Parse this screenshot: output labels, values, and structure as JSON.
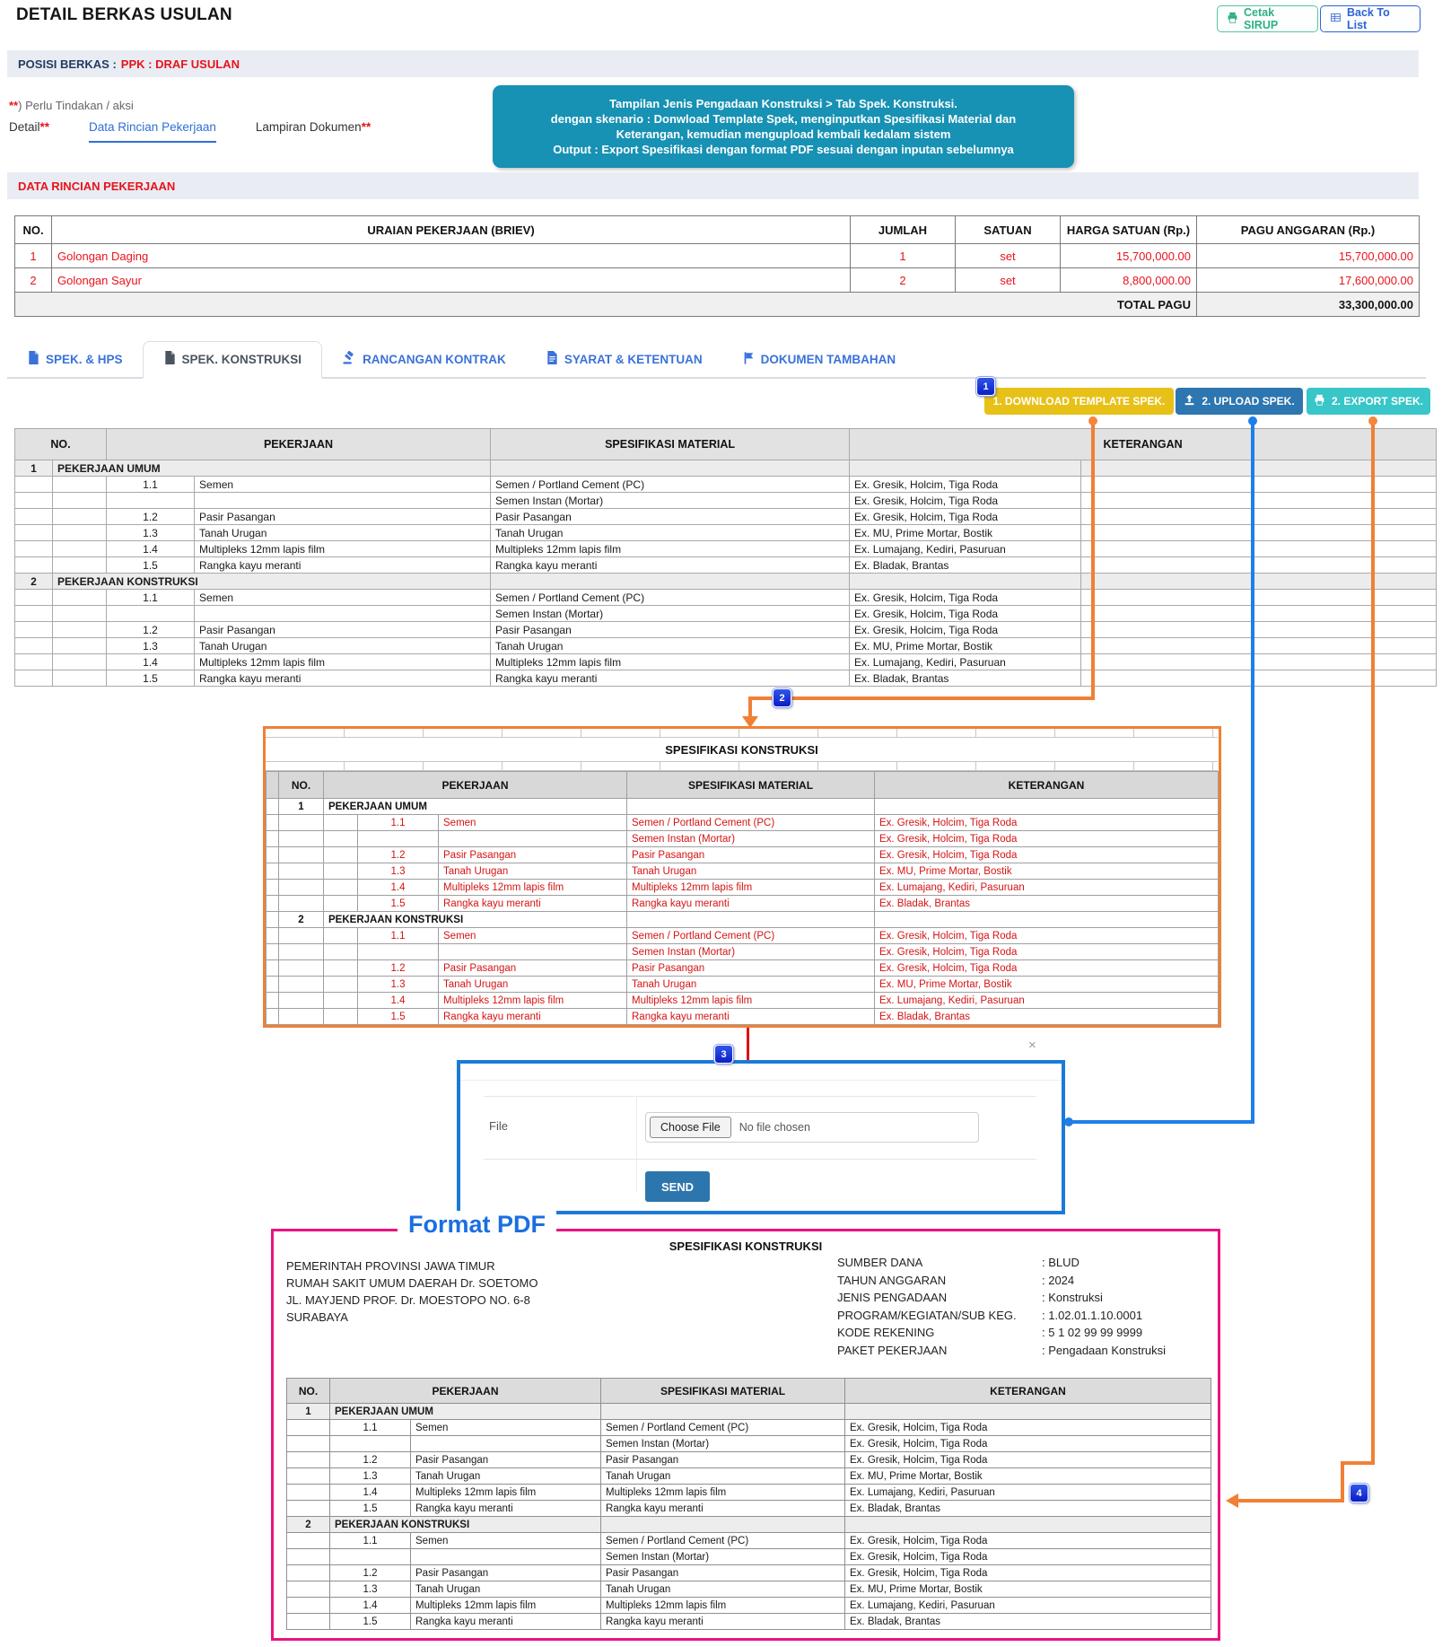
{
  "header": {
    "title": "DETAIL BERKAS USULAN",
    "print_button": "Cetak SIRUP",
    "back_button": "Back To List"
  },
  "posisi": {
    "label": "POSISI BERKAS :",
    "value": "PPK : DRAF USULAN"
  },
  "action_note": {
    "marker": "**",
    "text": ") Perlu Tindakan / aksi"
  },
  "sub_tabs": [
    {
      "label": "Detail",
      "marker": "**",
      "active": false
    },
    {
      "label": "Data Rincian Pekerjaan",
      "marker": "",
      "active": true
    },
    {
      "label": "Lampiran Dokumen",
      "marker": "**",
      "active": false
    }
  ],
  "callout": {
    "lines": [
      "Tampilan Jenis Pengadaan Konstruksi > Tab Spek. Konstruksi.",
      "dengan skenario : Donwload Template Spek, menginputkan Spesifikasi Material dan",
      "Keterangan, kemudian mengupload kembali kedalam sistem",
      "Output : Export Spesifikasi dengan format PDF sesuai dengan inputan sebelumnya"
    ]
  },
  "rincian": {
    "section_title": "DATA RINCIAN PEKERJAAN",
    "headers": [
      "NO.",
      "URAIAN PEKERJAAN (BRIEV)",
      "JUMLAH",
      "SATUAN",
      "HARGA SATUAN (Rp.)",
      "PAGU ANGGARAN (Rp.)"
    ],
    "rows": [
      {
        "no": "1",
        "uraian": "Golongan Daging",
        "jumlah": "1",
        "satuan": "set",
        "harga": "15,700,000.00",
        "pagu": "15,700,000.00"
      },
      {
        "no": "2",
        "uraian": "Golongan Sayur",
        "jumlah": "2",
        "satuan": "set",
        "harga": "8,800,000.00",
        "pagu": "17,600,000.00"
      }
    ],
    "total_label": "TOTAL PAGU",
    "total_value": "33,300,000.00"
  },
  "spec_tabs": [
    {
      "label": "SPEK. & HPS",
      "icon": "document-icon",
      "active": false
    },
    {
      "label": "SPEK. KONSTRUKSI",
      "icon": "document-icon",
      "active": true
    },
    {
      "label": "RANCANGAN KONTRAK",
      "icon": "gavel-icon",
      "active": false
    },
    {
      "label": "SYARAT & KETENTUAN",
      "icon": "document-lines-icon",
      "active": false
    },
    {
      "label": "DOKUMEN TAMBAHAN",
      "icon": "flag-icon",
      "active": false
    }
  ],
  "actions": {
    "download": "1. DOWNLOAD TEMPLATE SPEK.",
    "upload": "2. UPLOAD SPEK.",
    "export": "2. EXPORT SPEK."
  },
  "steps": {
    "one": "1",
    "two": "2",
    "three": "3",
    "four": "4"
  },
  "spec_table": {
    "headers": {
      "no": "NO.",
      "pekerjaan": "PEKERJAAN",
      "material": "SPESIFIKASI MATERIAL",
      "keterangan": "KETERANGAN"
    },
    "sections": [
      {
        "no": "1",
        "title": "PEKERJAAN UMUM",
        "items": [
          {
            "no": "1.1",
            "name": "Semen",
            "material": "Semen / Portland Cement (PC)",
            "ket": "Ex. Gresik, Holcim, Tiga Roda"
          },
          {
            "no": "",
            "name": "",
            "material": "Semen Instan (Mortar)",
            "ket": "Ex. Gresik, Holcim, Tiga Roda"
          },
          {
            "no": "1.2",
            "name": "Pasir Pasangan",
            "material": "Pasir Pasangan",
            "ket": "Ex. Gresik, Holcim, Tiga Roda"
          },
          {
            "no": "1.3",
            "name": "Tanah Urugan",
            "material": "Tanah Urugan",
            "ket": "Ex. MU, Prime Mortar, Bostik"
          },
          {
            "no": "1.4",
            "name": "Multipleks 12mm lapis film",
            "material": "Multipleks 12mm lapis film",
            "ket": "Ex. Lumajang, Kediri, Pasuruan"
          },
          {
            "no": "1.5",
            "name": "Rangka kayu meranti",
            "material": "Rangka kayu meranti",
            "ket": "Ex. Bladak, Brantas"
          }
        ]
      },
      {
        "no": "2",
        "title": "PEKERJAAN KONSTRUKSI",
        "items": [
          {
            "no": "1.1",
            "name": "Semen",
            "material": "Semen / Portland Cement (PC)",
            "ket": "Ex. Gresik, Holcim, Tiga Roda"
          },
          {
            "no": "",
            "name": "",
            "material": "Semen Instan (Mortar)",
            "ket": "Ex. Gresik, Holcim, Tiga Roda"
          },
          {
            "no": "1.2",
            "name": "Pasir Pasangan",
            "material": "Pasir Pasangan",
            "ket": "Ex. Gresik, Holcim, Tiga Roda"
          },
          {
            "no": "1.3",
            "name": "Tanah Urugan",
            "material": "Tanah Urugan",
            "ket": "Ex. MU, Prime Mortar, Bostik"
          },
          {
            "no": "1.4",
            "name": "Multipleks 12mm lapis film",
            "material": "Multipleks 12mm lapis film",
            "ket": "Ex. Lumajang, Kediri, Pasuruan"
          },
          {
            "no": "1.5",
            "name": "Rangka kayu meranti",
            "material": "Rangka kayu meranti",
            "ket": "Ex. Bladak, Brantas"
          }
        ]
      }
    ]
  },
  "excel": {
    "title": "SPESIFIKASI KONSTRUKSI"
  },
  "upload_modal": {
    "close": "×",
    "file_label": "File",
    "choose_button": "Choose File",
    "file_status": "No file chosen",
    "send_button": "SEND"
  },
  "pdf": {
    "label": "Format PDF",
    "title": "SPESIFIKASI KONSTRUKSI",
    "address_lines": [
      "PEMERINTAH PROVINSI JAWA TIMUR",
      "RUMAH SAKIT UMUM DAERAH Dr. SOETOMO",
      "JL. MAYJEND PROF. Dr. MOESTOPO NO. 6-8",
      "SURABAYA"
    ],
    "info": [
      {
        "label": "SUMBER DANA",
        "value": ": BLUD"
      },
      {
        "label": "TAHUN ANGGARAN",
        "value": ": 2024"
      },
      {
        "label": "JENIS PENGADAAN",
        "value": ": Konstruksi"
      },
      {
        "label": "PROGRAM/KEGIATAN/SUB KEG.",
        "value": ": 1.02.01.1.10.0001"
      },
      {
        "label": "KODE REKENING",
        "value": ": 5 1 02 99 99 9999"
      },
      {
        "label": "PAKET PEKERJAAN",
        "value": ": Pengadaan Konstruksi"
      }
    ]
  },
  "icons": {
    "print-icon": "printer",
    "back-list-icon": "table-grid",
    "document-icon": "document-page",
    "gavel-icon": "gavel",
    "document-lines-icon": "document-with-lines",
    "flag-icon": "flag",
    "upload-icon": "upload-tray-arrow",
    "close-icon": "x"
  },
  "colors": {
    "callout_teal": "#1791b4",
    "btn_yellow": "#e7c118",
    "btn_blue": "#2d76b0",
    "btn_teal": "#38c6c8",
    "connector_orange": "#f08035",
    "connector_blue": "#1d7fe8",
    "connector_red": "#e01212",
    "pdf_pink": "#ea1380",
    "data_red": "#e8131d"
  }
}
